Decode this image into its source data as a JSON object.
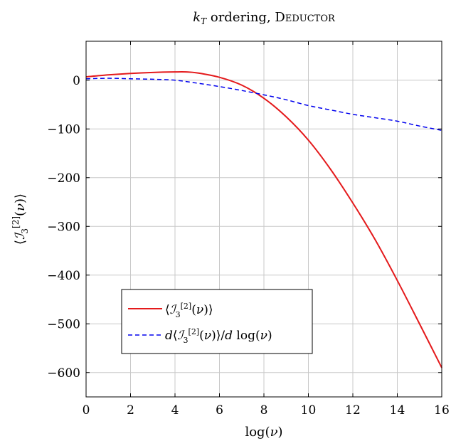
{
  "chart_data": {
    "type": "line",
    "title": "k_T ordering, Deductor",
    "xlabel": "log(ν)",
    "ylabel": "⟨I₃^[2](ν)⟩",
    "xlim": [
      0,
      16
    ],
    "ylim": [
      -650,
      80
    ],
    "xticks": [
      0,
      2,
      4,
      6,
      8,
      10,
      12,
      14,
      16
    ],
    "yticks": [
      0,
      -100,
      -200,
      -300,
      -400,
      -500,
      -600
    ],
    "ytick_labels": [
      "0",
      "−100",
      "−200",
      "−300",
      "−400",
      "−500",
      "−600"
    ],
    "grid": true,
    "legend_position": "bottom-left",
    "series": [
      {
        "name": "⟨I₃^[2](ν)⟩",
        "color": "#e41a1c",
        "style": "solid",
        "x": [
          0,
          1,
          2,
          3,
          4,
          4.5,
          5,
          6,
          7,
          8,
          9,
          10,
          11,
          12,
          13,
          14,
          15,
          16
        ],
        "y": [
          7,
          11,
          14,
          16,
          17,
          17,
          15,
          6,
          -10,
          -37,
          -75,
          -123,
          -183,
          -252,
          -327,
          -411,
          -500,
          -590
        ]
      },
      {
        "name": "d⟨I₃^[2](ν)⟩/d log(ν)",
        "color": "#0000ee",
        "style": "dashed",
        "x": [
          0,
          1,
          2,
          3,
          4,
          5,
          6,
          7,
          8,
          9,
          10,
          11,
          12,
          13,
          14,
          15,
          16
        ],
        "y": [
          3,
          4,
          3,
          2,
          0,
          -6,
          -13,
          -21,
          -30,
          -40,
          -52,
          -61,
          -70,
          -77,
          -84,
          -94,
          -103
        ]
      }
    ]
  }
}
